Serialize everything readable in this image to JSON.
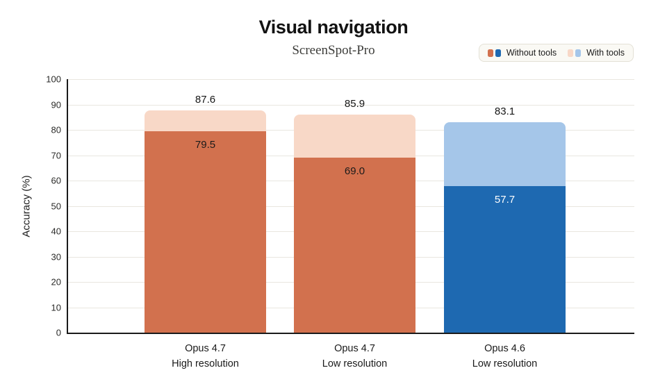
{
  "header": {
    "title": "Visual navigation",
    "subtitle": "ScreenSpot-Pro"
  },
  "legend": {
    "items": [
      {
        "label": "Without tools",
        "swatches": [
          "#D2714E",
          "#1E69B1"
        ]
      },
      {
        "label": "With tools",
        "swatches": [
          "#F8D8C7",
          "#A5C6E9"
        ]
      }
    ]
  },
  "colors": {
    "orange": "#D2714E",
    "light_pink": "#F8D8C7",
    "dark_blue": "#1E69B1",
    "light_blue": "#A5C6E9",
    "gridline": "#E9E6DF",
    "axis": "#1A1A1A",
    "legend_background": "#FAF9F4"
  },
  "chart_data": {
    "type": "bar",
    "stacked_overlay": true,
    "title": "Visual navigation",
    "subtitle": "ScreenSpot-Pro",
    "xlabel": "",
    "ylabel": "Accuracy (%)",
    "ylim": [
      0,
      100
    ],
    "ytick_step": 10,
    "grid": "horizontal",
    "legend_position": "top-right",
    "categories": [
      "Opus 4.7\nHigh resolution",
      "Opus 4.7\nLow resolution",
      "Opus 4.6\nLow resolution"
    ],
    "series": [
      {
        "name": "Without tools",
        "values": [
          79.5,
          69.0,
          57.7
        ]
      },
      {
        "name": "With tools",
        "values": [
          87.6,
          85.9,
          83.1
        ]
      }
    ],
    "bars": [
      {
        "category": "Opus 4.7\nHigh resolution",
        "without_tools": 79.5,
        "with_tools": 87.6,
        "without_label": "79.5",
        "with_label": "87.6",
        "base_color": "#D2714E",
        "top_color": "#F8D8C7",
        "inner_label_color": "#1A1A1A"
      },
      {
        "category": "Opus 4.7\nLow resolution",
        "without_tools": 69.0,
        "with_tools": 85.9,
        "without_label": "69.0",
        "with_label": "85.9",
        "base_color": "#D2714E",
        "top_color": "#F8D8C7",
        "inner_label_color": "#1A1A1A"
      },
      {
        "category": "Opus 4.6\nLow resolution",
        "without_tools": 57.7,
        "with_tools": 83.1,
        "without_label": "57.7",
        "with_label": "83.1",
        "base_color": "#1E69B1",
        "top_color": "#A5C6E9",
        "inner_label_color": "#FFFFFF"
      }
    ]
  }
}
